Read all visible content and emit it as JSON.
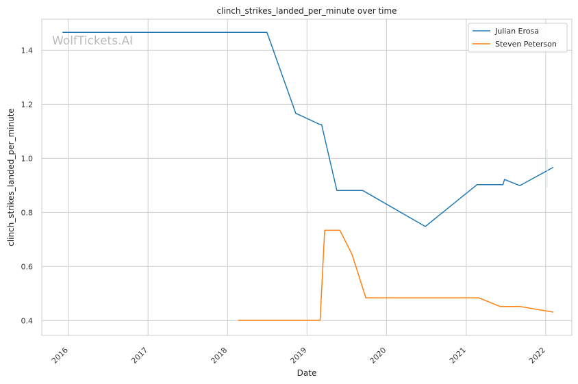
{
  "watermark": "WolfTickets.AI",
  "chart_data": {
    "type": "line",
    "title": "clinch_strikes_landed_per_minute over time",
    "xlabel": "Date",
    "ylabel": "clinch_strikes_landed_per_minute",
    "x_ticks": [
      "2016",
      "2017",
      "2018",
      "2019",
      "2020",
      "2021",
      "2022"
    ],
    "y_ticks": [
      "0.4",
      "0.6",
      "0.8",
      "1.0",
      "1.2",
      "1.4"
    ],
    "xlim": [
      "2015-09-01",
      "2022-05-01"
    ],
    "ylim": [
      0.345,
      1.515
    ],
    "grid": true,
    "legend": "top-right",
    "series": [
      {
        "name": "Julian Erosa",
        "color": "#1f77b4",
        "points": [
          [
            "2015-12-05",
            1.466
          ],
          [
            "2018-07-01",
            1.466
          ],
          [
            "2018-11-10",
            1.167
          ],
          [
            "2019-03-02",
            1.125
          ],
          [
            "2019-03-09",
            1.125
          ],
          [
            "2019-05-18",
            0.881
          ],
          [
            "2019-09-14",
            0.881
          ],
          [
            "2020-06-27",
            0.748
          ],
          [
            "2021-02-20",
            0.903
          ],
          [
            "2021-06-19",
            0.903
          ],
          [
            "2021-06-26",
            0.922
          ],
          [
            "2021-09-04",
            0.899
          ],
          [
            "2022-02-05",
            0.967
          ]
        ]
      },
      {
        "name": "Steven Peterson",
        "color": "#ff7f0e",
        "points": [
          [
            "2018-02-18",
            0.401
          ],
          [
            "2019-03-02",
            0.401
          ],
          [
            "2019-03-23",
            0.734
          ],
          [
            "2019-06-01",
            0.734
          ],
          [
            "2019-07-27",
            0.644
          ],
          [
            "2019-09-28",
            0.484
          ],
          [
            "2021-02-27",
            0.484
          ],
          [
            "2021-06-05",
            0.452
          ],
          [
            "2021-09-04",
            0.452
          ],
          [
            "2022-02-05",
            0.431
          ]
        ]
      }
    ]
  }
}
